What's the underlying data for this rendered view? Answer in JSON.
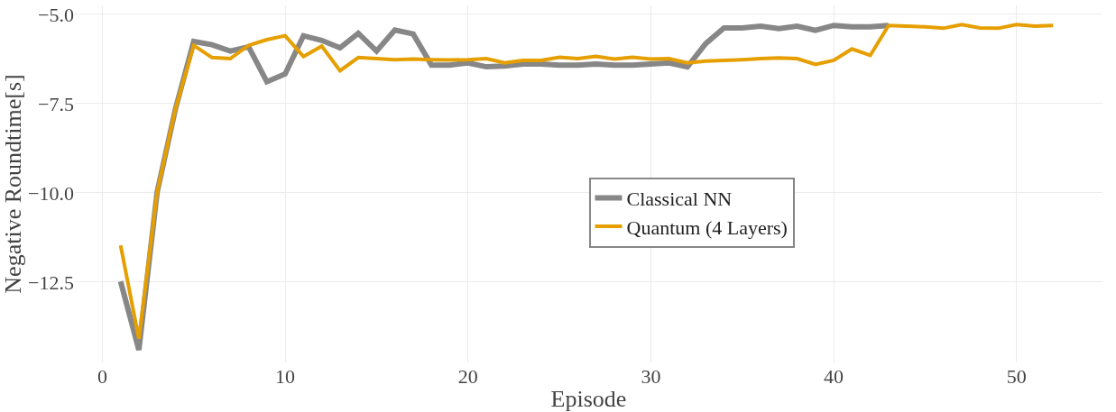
{
  "chart_data": {
    "type": "line",
    "xlabel": "Episode",
    "ylabel": "Negative Roundtime[s]",
    "x": [
      1,
      2,
      3,
      4,
      5,
      6,
      7,
      8,
      9,
      10,
      11,
      12,
      13,
      14,
      15,
      16,
      17,
      18,
      19,
      20,
      21,
      22,
      23,
      24,
      25,
      26,
      27,
      28,
      29,
      30,
      31,
      32,
      33,
      34,
      35,
      36,
      37,
      38,
      39,
      40,
      41,
      42,
      43,
      44,
      45,
      46,
      47,
      48,
      49,
      50,
      51,
      52
    ],
    "series": [
      {
        "name": "Classical NN",
        "color": "#878787",
        "values": [
          -12.48,
          -14.4,
          -9.98,
          -7.65,
          -5.76,
          -5.85,
          -6.03,
          -5.91,
          -6.89,
          -6.67,
          -5.6,
          -5.73,
          -5.94,
          -5.53,
          -6.03,
          -5.44,
          -5.55,
          -6.42,
          -6.42,
          -6.36,
          -6.47,
          -6.45,
          -6.39,
          -6.39,
          -6.42,
          -6.42,
          -6.39,
          -6.42,
          -6.42,
          -6.39,
          -6.36,
          -6.47,
          -5.82,
          -5.38,
          -5.38,
          -5.33,
          -5.4,
          -5.33,
          -5.45,
          -5.31,
          -5.35,
          -5.35,
          -5.31,
          null,
          null,
          null,
          null,
          null,
          null,
          null,
          null,
          null
        ]
      },
      {
        "name": "Quantum (4 Layers)",
        "color": "#e69f00",
        "values": [
          -11.47,
          -14.09,
          -9.98,
          -7.65,
          -5.87,
          -6.21,
          -6.24,
          -5.87,
          -5.71,
          -5.6,
          -6.18,
          -5.89,
          -6.58,
          -6.21,
          -6.24,
          -6.27,
          -6.25,
          -6.27,
          -6.28,
          -6.27,
          -6.24,
          -6.36,
          -6.29,
          -6.29,
          -6.2,
          -6.24,
          -6.18,
          -6.25,
          -6.2,
          -6.25,
          -6.24,
          -6.36,
          -6.31,
          -6.29,
          -6.27,
          -6.24,
          -6.22,
          -6.24,
          -6.4,
          -6.29,
          -5.97,
          -6.15,
          -5.31,
          -5.33,
          -5.35,
          -5.39,
          -5.29,
          -5.38,
          -5.39,
          -5.29,
          -5.33,
          -5.31
        ]
      }
    ],
    "xlim": [
      -1.5,
      54.7
    ],
    "xticks": [
      0,
      10,
      20,
      30,
      40,
      50
    ],
    "ylim": [
      -14.75,
      -4.75
    ],
    "yticks": [
      {
        "value": -5,
        "label": "−5.0"
      },
      {
        "value": -7.5,
        "label": "−7.5"
      },
      {
        "value": -10,
        "label": "−10.0"
      },
      {
        "value": -12.5,
        "label": "−12.5"
      }
    ],
    "grid": true,
    "legend": "center",
    "marker": "none",
    "line_style": "solid"
  }
}
